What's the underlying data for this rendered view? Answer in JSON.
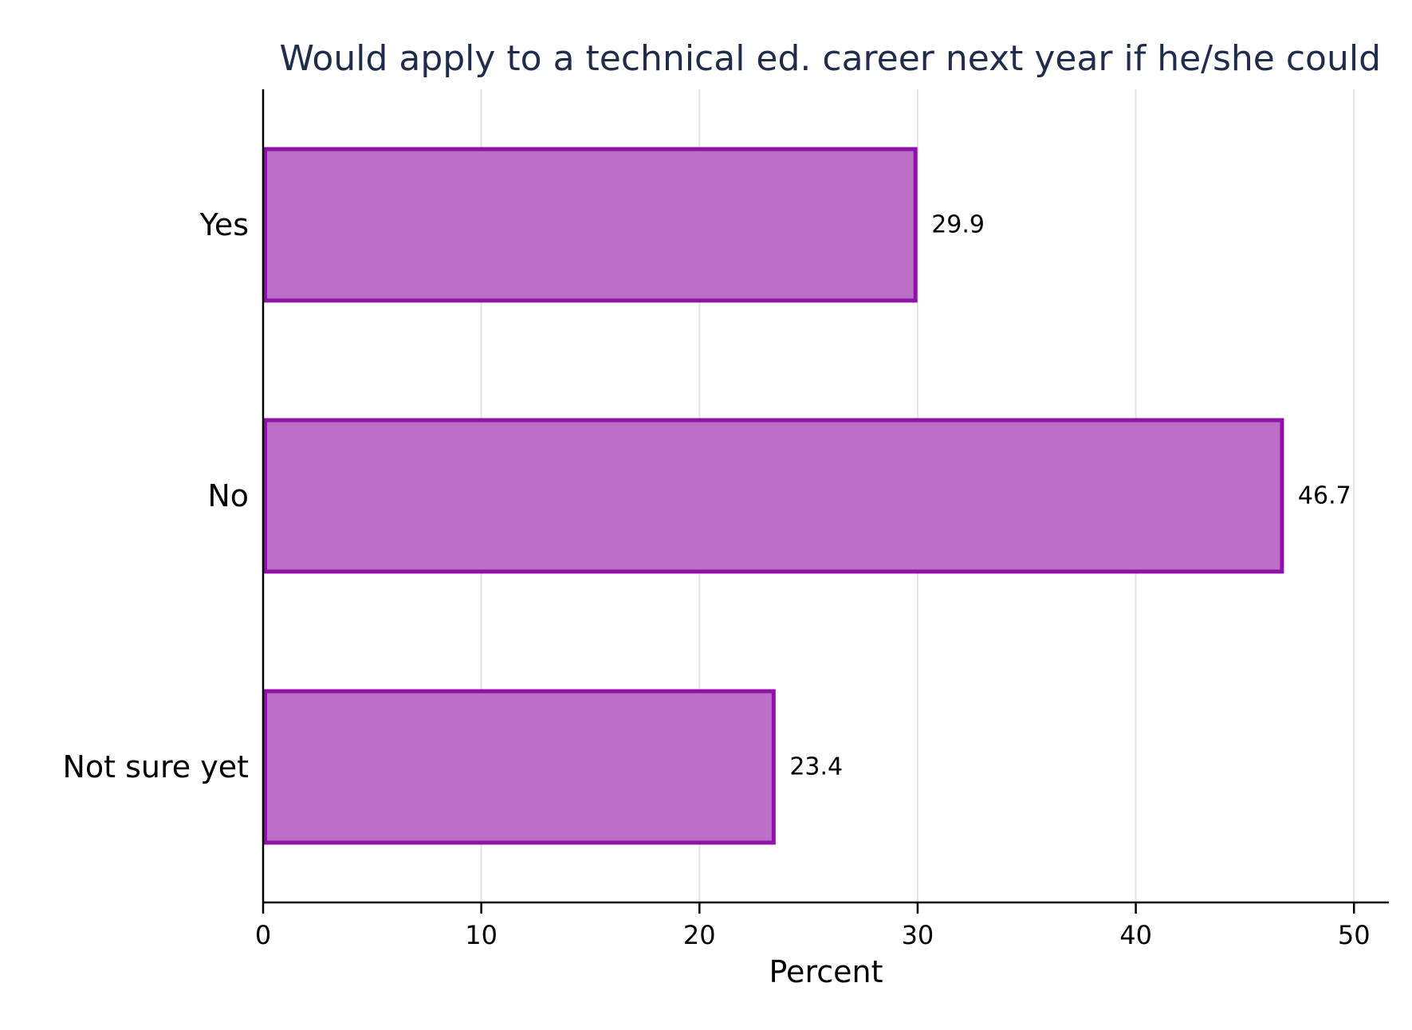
{
  "chart_data": {
    "type": "bar",
    "orientation": "horizontal",
    "title": "Would apply to a technical ed. career next year if he/she could",
    "xlabel": "Percent",
    "ylabel": "",
    "categories": [
      "Yes",
      "No",
      "Not sure yet"
    ],
    "values": [
      29.9,
      46.7,
      23.4
    ],
    "value_labels": [
      "29.9",
      "46.7",
      "23.4"
    ],
    "xlim": [
      0,
      51.6
    ],
    "xticks": [
      0,
      10,
      20,
      30,
      40,
      50
    ],
    "xtick_labels": [
      "0",
      "10",
      "20",
      "30",
      "40",
      "50"
    ],
    "grid": "vertical",
    "legend": "none",
    "colors": {
      "bar_fill": "#bc6fc7",
      "bar_edge": "#8e12aa",
      "title": "#1f2d4a",
      "axis": "#000000",
      "grid": "#e3e3e3",
      "text": "#000000"
    }
  }
}
